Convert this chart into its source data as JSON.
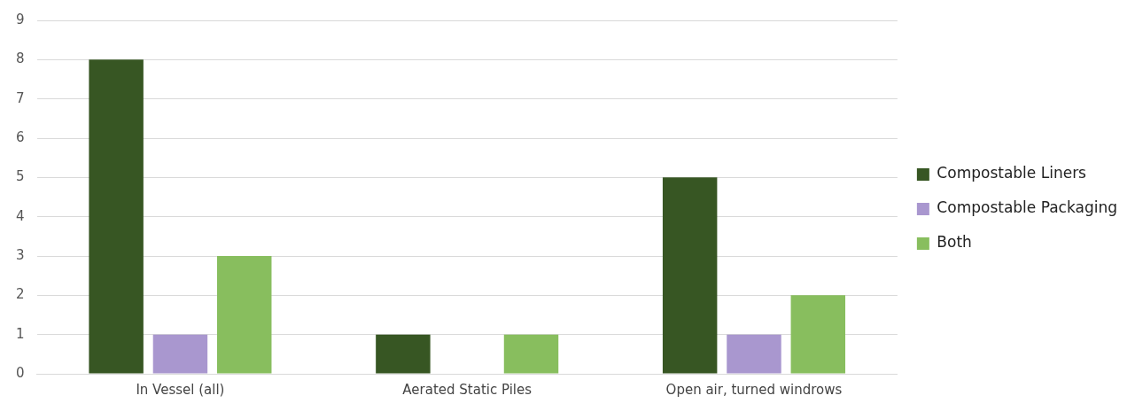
{
  "chart_data": {
    "type": "bar",
    "categories": [
      "In Vessel (all)",
      "Aerated Static Piles",
      "Open air, turned windrows"
    ],
    "series": [
      {
        "name": "Compostable Liners",
        "color": "#375623",
        "values": [
          8,
          1,
          5
        ]
      },
      {
        "name": "Compostable Packaging",
        "color": "#a997cf",
        "values": [
          1,
          0,
          1
        ]
      },
      {
        "name": "Both",
        "color": "#88be5e",
        "values": [
          3,
          1,
          2
        ]
      }
    ],
    "ylim": [
      0,
      9
    ],
    "yticks": [
      0,
      1,
      2,
      3,
      4,
      5,
      6,
      7,
      8,
      9
    ],
    "grid": "y",
    "legend": "right"
  }
}
